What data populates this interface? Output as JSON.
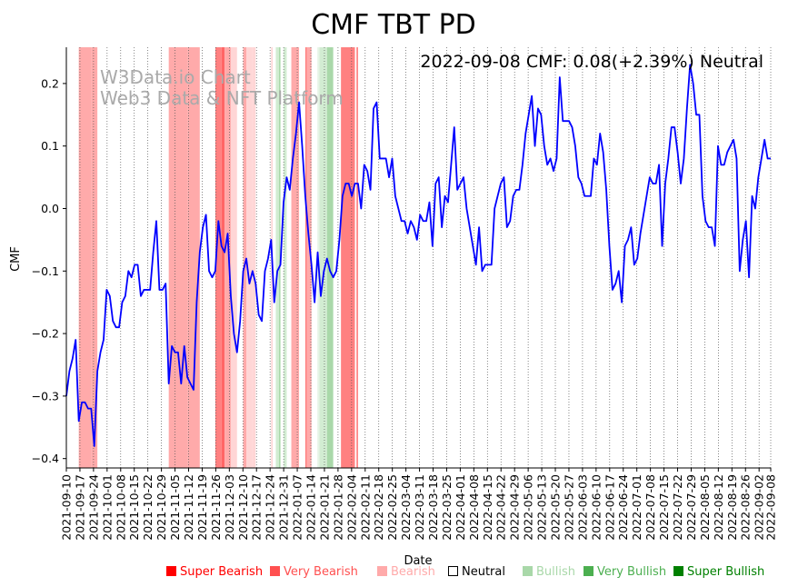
{
  "chart_data": {
    "type": "line",
    "title": "CMF TBT PD",
    "status_text": "2022-09-08 CMF: 0.08(+2.39%) Neutral",
    "watermark": [
      "W3Data.io Chart",
      "Web3 Data & NFT Platform"
    ],
    "xlabel": "Date",
    "ylabel": "CMF",
    "ylim": [
      -0.415,
      0.258
    ],
    "y_ticks": [
      0.2,
      0.1,
      0.0,
      -0.1,
      -0.2,
      -0.3,
      -0.4
    ],
    "y_tick_labels": [
      "0.2",
      "0.1",
      "0.0",
      "−0.1",
      "−0.2",
      "−0.3",
      "−0.4"
    ],
    "x_start": "2021-09-10",
    "x_end": "2022-09-08",
    "x_tick_labels": [
      "2021-09-10",
      "2021-09-17",
      "2021-09-24",
      "2021-10-01",
      "2021-10-08",
      "2021-10-15",
      "2021-10-22",
      "2021-10-29",
      "2021-11-05",
      "2021-11-12",
      "2021-11-19",
      "2021-11-26",
      "2021-12-03",
      "2021-12-10",
      "2021-12-17",
      "2021-12-24",
      "2021-12-31",
      "2022-01-07",
      "2022-01-14",
      "2022-01-21",
      "2022-01-28",
      "2022-02-04",
      "2022-02-11",
      "2022-02-18",
      "2022-02-25",
      "2022-03-04",
      "2022-03-11",
      "2022-03-18",
      "2022-03-25",
      "2022-04-01",
      "2022-04-08",
      "2022-04-15",
      "2022-04-22",
      "2022-04-29",
      "2022-05-06",
      "2022-05-13",
      "2022-05-20",
      "2022-05-27",
      "2022-06-03",
      "2022-06-10",
      "2022-06-17",
      "2022-06-24",
      "2022-07-01",
      "2022-07-08",
      "2022-07-15",
      "2022-07-22",
      "2022-07-29",
      "2022-08-05",
      "2022-08-12",
      "2022-08-19",
      "2022-08-26",
      "2022-09-02",
      "2022-09-08"
    ],
    "line_color": "#0000ff",
    "series": [
      {
        "name": "CMF",
        "points": [
          [
            0,
            -0.3
          ],
          [
            1,
            -0.26
          ],
          [
            2,
            -0.24
          ],
          [
            3,
            -0.21
          ],
          [
            4,
            -0.34
          ],
          [
            5,
            -0.31
          ],
          [
            6,
            -0.31
          ],
          [
            7,
            -0.32
          ],
          [
            8,
            -0.32
          ],
          [
            9,
            -0.38
          ],
          [
            10,
            -0.26
          ],
          [
            11,
            -0.23
          ],
          [
            12,
            -0.21
          ],
          [
            13,
            -0.13
          ],
          [
            14,
            -0.14
          ],
          [
            15,
            -0.18
          ],
          [
            16,
            -0.19
          ],
          [
            17,
            -0.19
          ],
          [
            18,
            -0.15
          ],
          [
            19,
            -0.14
          ],
          [
            20,
            -0.1
          ],
          [
            21,
            -0.11
          ],
          [
            22,
            -0.09
          ],
          [
            23,
            -0.09
          ],
          [
            24,
            -0.14
          ],
          [
            25,
            -0.13
          ],
          [
            26,
            -0.13
          ],
          [
            27,
            -0.13
          ],
          [
            28,
            -0.07
          ],
          [
            29,
            -0.02
          ],
          [
            30,
            -0.13
          ],
          [
            31,
            -0.13
          ],
          [
            32,
            -0.12
          ],
          [
            33,
            -0.28
          ],
          [
            34,
            -0.22
          ],
          [
            35,
            -0.23
          ],
          [
            36,
            -0.23
          ],
          [
            37,
            -0.28
          ],
          [
            38,
            -0.22
          ],
          [
            39,
            -0.27
          ],
          [
            40,
            -0.28
          ],
          [
            41,
            -0.29
          ],
          [
            42,
            -0.15
          ],
          [
            43,
            -0.07
          ],
          [
            44,
            -0.03
          ],
          [
            45,
            -0.01
          ],
          [
            46,
            -0.1
          ],
          [
            47,
            -0.11
          ],
          [
            48,
            -0.1
          ],
          [
            49,
            -0.02
          ],
          [
            50,
            -0.06
          ],
          [
            51,
            -0.07
          ],
          [
            52,
            -0.04
          ],
          [
            53,
            -0.14
          ],
          [
            54,
            -0.2
          ],
          [
            55,
            -0.23
          ],
          [
            56,
            -0.18
          ],
          [
            57,
            -0.1
          ],
          [
            58,
            -0.08
          ],
          [
            59,
            -0.12
          ],
          [
            60,
            -0.1
          ],
          [
            61,
            -0.12
          ],
          [
            62,
            -0.17
          ],
          [
            63,
            -0.18
          ],
          [
            64,
            -0.1
          ],
          [
            65,
            -0.08
          ],
          [
            66,
            -0.05
          ],
          [
            67,
            -0.15
          ],
          [
            68,
            -0.1
          ],
          [
            69,
            -0.09
          ],
          [
            70,
            0.01
          ],
          [
            71,
            0.05
          ],
          [
            72,
            0.03
          ],
          [
            73,
            0.08
          ],
          [
            74,
            0.12
          ],
          [
            75,
            0.17
          ],
          [
            76,
            0.1
          ],
          [
            77,
            0.02
          ],
          [
            78,
            -0.04
          ],
          [
            79,
            -0.09
          ],
          [
            80,
            -0.15
          ],
          [
            81,
            -0.07
          ],
          [
            82,
            -0.14
          ],
          [
            83,
            -0.1
          ],
          [
            84,
            -0.08
          ],
          [
            85,
            -0.1
          ],
          [
            86,
            -0.11
          ],
          [
            87,
            -0.1
          ],
          [
            88,
            -0.05
          ],
          [
            89,
            0.02
          ],
          [
            90,
            0.04
          ],
          [
            91,
            0.04
          ],
          [
            92,
            0.02
          ],
          [
            93,
            0.04
          ],
          [
            94,
            0.04
          ],
          [
            95,
            0.0
          ],
          [
            96,
            0.07
          ],
          [
            97,
            0.06
          ],
          [
            98,
            0.03
          ],
          [
            99,
            0.16
          ],
          [
            100,
            0.17
          ],
          [
            101,
            0.08
          ],
          [
            102,
            0.08
          ],
          [
            103,
            0.08
          ],
          [
            104,
            0.05
          ],
          [
            105,
            0.08
          ],
          [
            106,
            0.02
          ],
          [
            107,
            0.0
          ],
          [
            108,
            -0.02
          ],
          [
            109,
            -0.02
          ],
          [
            110,
            -0.04
          ],
          [
            111,
            -0.02
          ],
          [
            112,
            -0.03
          ],
          [
            113,
            -0.05
          ],
          [
            114,
            -0.01
          ],
          [
            115,
            -0.02
          ],
          [
            116,
            -0.02
          ],
          [
            117,
            0.01
          ],
          [
            118,
            -0.06
          ],
          [
            119,
            0.04
          ],
          [
            120,
            0.05
          ],
          [
            121,
            -0.03
          ],
          [
            122,
            0.02
          ],
          [
            123,
            0.01
          ],
          [
            124,
            0.07
          ],
          [
            125,
            0.13
          ],
          [
            126,
            0.03
          ],
          [
            127,
            0.04
          ],
          [
            128,
            0.05
          ],
          [
            129,
            0.0
          ],
          [
            130,
            -0.03
          ],
          [
            131,
            -0.06
          ],
          [
            132,
            -0.09
          ],
          [
            133,
            -0.03
          ],
          [
            134,
            -0.1
          ],
          [
            135,
            -0.09
          ],
          [
            136,
            -0.09
          ],
          [
            137,
            -0.09
          ],
          [
            138,
            0.0
          ],
          [
            139,
            0.02
          ],
          [
            140,
            0.04
          ],
          [
            141,
            0.05
          ],
          [
            142,
            -0.03
          ],
          [
            143,
            -0.02
          ],
          [
            144,
            0.02
          ],
          [
            145,
            0.03
          ],
          [
            146,
            0.03
          ],
          [
            147,
            0.07
          ],
          [
            148,
            0.12
          ],
          [
            149,
            0.15
          ],
          [
            150,
            0.18
          ],
          [
            151,
            0.1
          ],
          [
            152,
            0.16
          ],
          [
            153,
            0.15
          ],
          [
            154,
            0.1
          ],
          [
            155,
            0.07
          ],
          [
            156,
            0.08
          ],
          [
            157,
            0.06
          ],
          [
            158,
            0.08
          ],
          [
            159,
            0.21
          ],
          [
            160,
            0.14
          ],
          [
            161,
            0.14
          ],
          [
            162,
            0.14
          ],
          [
            163,
            0.13
          ],
          [
            164,
            0.1
          ],
          [
            165,
            0.05
          ],
          [
            166,
            0.04
          ],
          [
            167,
            0.02
          ],
          [
            168,
            0.02
          ],
          [
            169,
            0.02
          ],
          [
            170,
            0.08
          ],
          [
            171,
            0.07
          ],
          [
            172,
            0.12
          ],
          [
            173,
            0.09
          ],
          [
            174,
            0.03
          ],
          [
            175,
            -0.06
          ],
          [
            176,
            -0.13
          ],
          [
            177,
            -0.12
          ],
          [
            178,
            -0.1
          ],
          [
            179,
            -0.15
          ],
          [
            180,
            -0.06
          ],
          [
            181,
            -0.05
          ],
          [
            182,
            -0.03
          ],
          [
            183,
            -0.09
          ],
          [
            184,
            -0.08
          ],
          [
            185,
            -0.04
          ],
          [
            186,
            -0.01
          ],
          [
            187,
            0.02
          ],
          [
            188,
            0.05
          ],
          [
            189,
            0.04
          ],
          [
            190,
            0.04
          ],
          [
            191,
            0.07
          ],
          [
            192,
            -0.06
          ],
          [
            193,
            0.04
          ],
          [
            194,
            0.08
          ],
          [
            195,
            0.13
          ],
          [
            196,
            0.13
          ],
          [
            197,
            0.09
          ],
          [
            198,
            0.04
          ],
          [
            199,
            0.08
          ],
          [
            200,
            0.16
          ],
          [
            201,
            0.23
          ],
          [
            202,
            0.2
          ],
          [
            203,
            0.15
          ],
          [
            204,
            0.15
          ],
          [
            205,
            0.02
          ],
          [
            206,
            -0.02
          ],
          [
            207,
            -0.03
          ],
          [
            208,
            -0.03
          ],
          [
            209,
            -0.06
          ],
          [
            210,
            0.1
          ],
          [
            211,
            0.07
          ],
          [
            212,
            0.07
          ],
          [
            213,
            0.09
          ],
          [
            214,
            0.1
          ],
          [
            215,
            0.11
          ],
          [
            216,
            0.08
          ],
          [
            217,
            -0.1
          ],
          [
            218,
            -0.05
          ],
          [
            219,
            -0.02
          ],
          [
            220,
            -0.11
          ],
          [
            221,
            0.02
          ],
          [
            222,
            0.0
          ],
          [
            223,
            0.05
          ],
          [
            224,
            0.08
          ],
          [
            225,
            0.11
          ],
          [
            226,
            0.08
          ],
          [
            227,
            0.08
          ]
        ]
      }
    ],
    "bands": [
      {
        "start": 4,
        "end": 8,
        "level": "bearish"
      },
      {
        "start": 8,
        "end": 10,
        "level": "bearish"
      },
      {
        "start": 33,
        "end": 39,
        "level": "bearish"
      },
      {
        "start": 39,
        "end": 43,
        "level": "bearish"
      },
      {
        "start": 48,
        "end": 50,
        "level": "very_bearish"
      },
      {
        "start": 50,
        "end": 51,
        "level": "super_bearish"
      },
      {
        "start": 51,
        "end": 53,
        "level": "bearish"
      },
      {
        "start": 53,
        "end": 55,
        "level": "light_bearish"
      },
      {
        "start": 57,
        "end": 58,
        "level": "bearish"
      },
      {
        "start": 58,
        "end": 60,
        "level": "light_bearish"
      },
      {
        "start": 60,
        "end": 61,
        "level": "light_bearish"
      },
      {
        "start": 66,
        "end": 66.5,
        "level": "light_bearish"
      },
      {
        "start": 67.5,
        "end": 68.5,
        "level": "light_bullish"
      },
      {
        "start": 68.5,
        "end": 69,
        "level": "bullish"
      },
      {
        "start": 70,
        "end": 71,
        "level": "light_bullish"
      },
      {
        "start": 72.5,
        "end": 75,
        "level": "bearish"
      },
      {
        "start": 77,
        "end": 77.5,
        "level": "very_bearish"
      },
      {
        "start": 77.5,
        "end": 79,
        "level": "bearish"
      },
      {
        "start": 81,
        "end": 81.3,
        "level": "light_bullish"
      },
      {
        "start": 81.5,
        "end": 84,
        "level": "light_bullish"
      },
      {
        "start": 84,
        "end": 86,
        "level": "bullish"
      },
      {
        "start": 88.5,
        "end": 93,
        "level": "very_bearish"
      },
      {
        "start": 93.5,
        "end": 94,
        "level": "very_bearish"
      }
    ],
    "band_colors": {
      "super_bearish": "#ff6666",
      "very_bearish": "#ff8080",
      "bearish": "#ffaaaa",
      "light_bearish": "#ffd6d6",
      "light_bullish": "#d2ecd2",
      "bullish": "#a9d8a9"
    },
    "legend": [
      {
        "label": "Super Bearish",
        "color": "#ff0000",
        "text_color": "#ff0000"
      },
      {
        "label": "Very Bearish",
        "color": "#ff5050",
        "text_color": "#ff5050"
      },
      {
        "label": "Bearish",
        "color": "#ffaaaa",
        "text_color": "#ffaaaa"
      },
      {
        "label": "Neutral",
        "color": "none",
        "text_color": "#000000"
      },
      {
        "label": "Bullish",
        "color": "#a9d8a9",
        "text_color": "#a9d8a9"
      },
      {
        "label": "Very Bullish",
        "color": "#4caf50",
        "text_color": "#4caf50"
      },
      {
        "label": "Super Bullish",
        "color": "#008000",
        "text_color": "#008000"
      }
    ]
  }
}
